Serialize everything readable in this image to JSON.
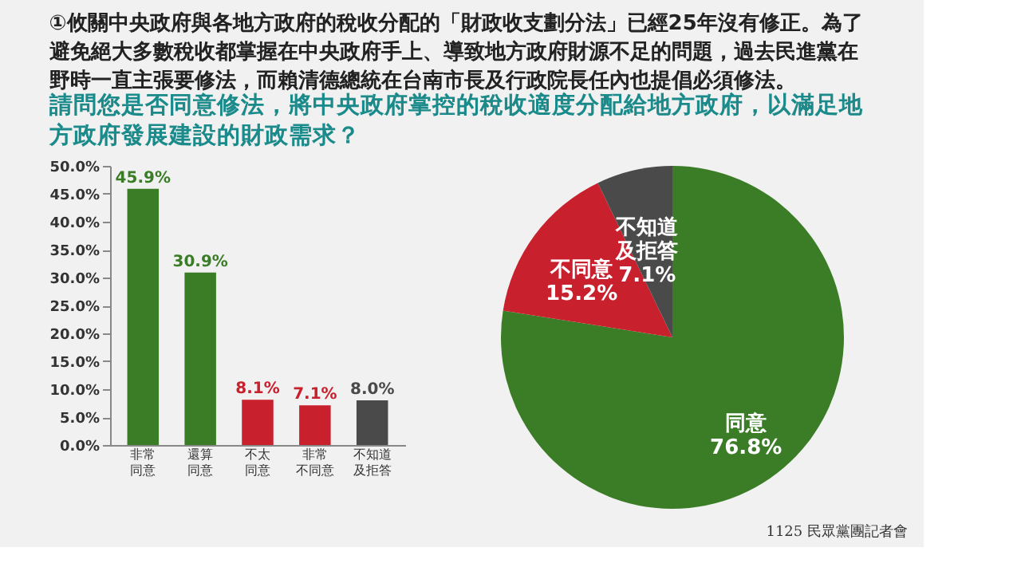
{
  "chart_data": [
    {
      "type": "bar",
      "title": "①攸關中央政府與各地方政府的稅收分配的「財政收支劃分法」已經25年沒有修正。為了避免絕大多數稅收都掌握在中央政府手上、導致地方政府財源不足的問題，過去民進黨在野時一直主張要修法，而賴清德總統在台南市長及行政院長任內也提倡必須修法。",
      "subtitle": "請問您是否同意修法，將中央政府掌控的稅收適度分配給地方政府，以滿足地方政府發展建設的財政需求？",
      "categories": [
        "非常同意",
        "還算同意",
        "不太同意",
        "非常不同意",
        "不知道及拒答"
      ],
      "values": [
        45.9,
        30.9,
        8.1,
        7.1,
        8.0
      ],
      "colors": [
        "#3b7d27",
        "#3b7d27",
        "#c9202e",
        "#c9202e",
        "#4a4a4a"
      ],
      "value_labels": [
        "45.9%",
        "30.9%",
        "8.1%",
        "7.1%",
        "8.0%"
      ],
      "ylim": [
        0,
        50
      ],
      "yticks": [
        {
          "value": 0,
          "label": "0.0%"
        },
        {
          "value": 5,
          "label": "5.0%"
        },
        {
          "value": 10,
          "label": "10.0%"
        },
        {
          "value": 15,
          "label": "15.0%"
        },
        {
          "value": 20,
          "label": "20.0%"
        },
        {
          "value": 25,
          "label": "25.0%"
        },
        {
          "value": 30,
          "label": "30.0%"
        },
        {
          "value": 35,
          "label": "35.0%"
        },
        {
          "value": 40,
          "label": "40.0%"
        },
        {
          "value": 45,
          "label": "45.0%"
        },
        {
          "value": 50,
          "label": "50.0%"
        }
      ],
      "grid": false,
      "legend": false
    },
    {
      "type": "pie",
      "categories": [
        "同意",
        "不同意",
        "不知道及拒答"
      ],
      "values": [
        76.8,
        15.2,
        7.1
      ],
      "colors": [
        "#3b7d27",
        "#c9202e",
        "#4a4a4a"
      ],
      "value_labels": [
        "76.8%",
        "15.2%",
        "7.1%"
      ],
      "legend": false,
      "annotations": [
        "1125 民眾黨團記者會"
      ]
    }
  ]
}
